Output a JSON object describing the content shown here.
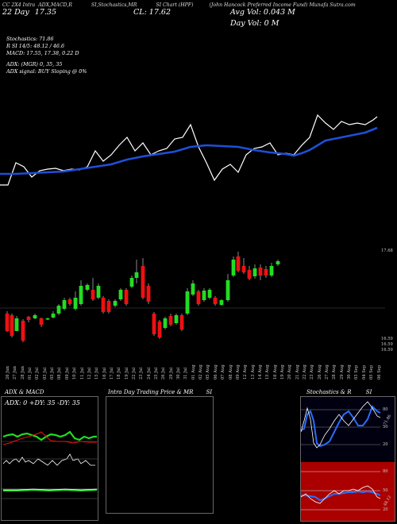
{
  "header": {
    "col1": "CC 2X4 Intra",
    "col2": "ADX,MACD,R",
    "col3": "SI,Stochastics,MR",
    "col4": "SI Chart (HPF)",
    "col5": "(John Hancock Preferred Income Fund) Munafa",
    "col6": "Sutra.com"
  },
  "top_info": {
    "date_line": "22 Day",
    "price_small": "17.35",
    "close": "CL: 17.62",
    "avg_vol": "Avg Vol: 0.043  M",
    "day_vol": "Day Vol: 0   M"
  },
  "indicators": {
    "stoch": "Stochastics: 71.86",
    "rsi": "R      SI 14/5: 48.12 / 46.6",
    "macd": "MACD: 17.55,  17.38, 0.22  D",
    "adx": "ADX:                    (MGR) 0,  35,  35",
    "adx_signal": "ADX  signal:                          BUY Sloping @ 0%"
  },
  "price_axis": {
    "top_label": "17.68",
    "bottom_labels": [
      "16.59",
      "16.59",
      "16.59"
    ]
  },
  "x_labels": [
    "26 Jun",
    "27 Jun",
    "28 Jun",
    "01 Jul",
    "02 Jul",
    "03 Jul",
    "05 Jul",
    "08 Jul",
    "09 Jul",
    "10 Jul",
    "11 Jul",
    "12 Jul",
    "15 Jul",
    "16 Jul",
    "17 Jul",
    "18 Jul",
    "19 Jul",
    "22 Jul",
    "23 Jul",
    "24 Jul",
    "25 Jul",
    "26 Jul",
    "29 Jul",
    "30 Jul",
    "31 Jul",
    "01 Aug",
    "02 Aug",
    "05 Aug",
    "06 Aug",
    "07 Aug",
    "08 Aug",
    "09 Aug",
    "12 Aug",
    "13 Aug",
    "14 Aug",
    "15 Aug",
    "16 Aug",
    "19 Aug",
    "20 Aug",
    "21 Aug",
    "22 Aug",
    "23 Aug",
    "26 Aug",
    "27 Aug",
    "28 Aug",
    "29 Aug",
    "30 Aug",
    "03 Sep",
    "04 Sep",
    "05 Sep",
    "06 Sep"
  ],
  "panels": {
    "adx_title": "ADX  & MACD",
    "adx_values": "ADX: 0   +DY: 35  -DY: 35",
    "intraday_title": "Intra  Day Trading Price  & MR",
    "intraday_title2": "SI",
    "stoch_title": "Stochastics & R",
    "stoch_title2": "SI",
    "stoch_ticks": [
      "80",
      "50",
      "20"
    ],
    "stoch_value": "71.86",
    "rsi_ticks": [
      "80",
      "50",
      "20"
    ],
    "rsi_value": "48.12"
  },
  "colors": {
    "ema": "#1e4fd8",
    "up": "#22dd22",
    "down": "#ee1111",
    "rsi_bg": "#aa0000",
    "stoch_line": "#2a6cff"
  }
}
